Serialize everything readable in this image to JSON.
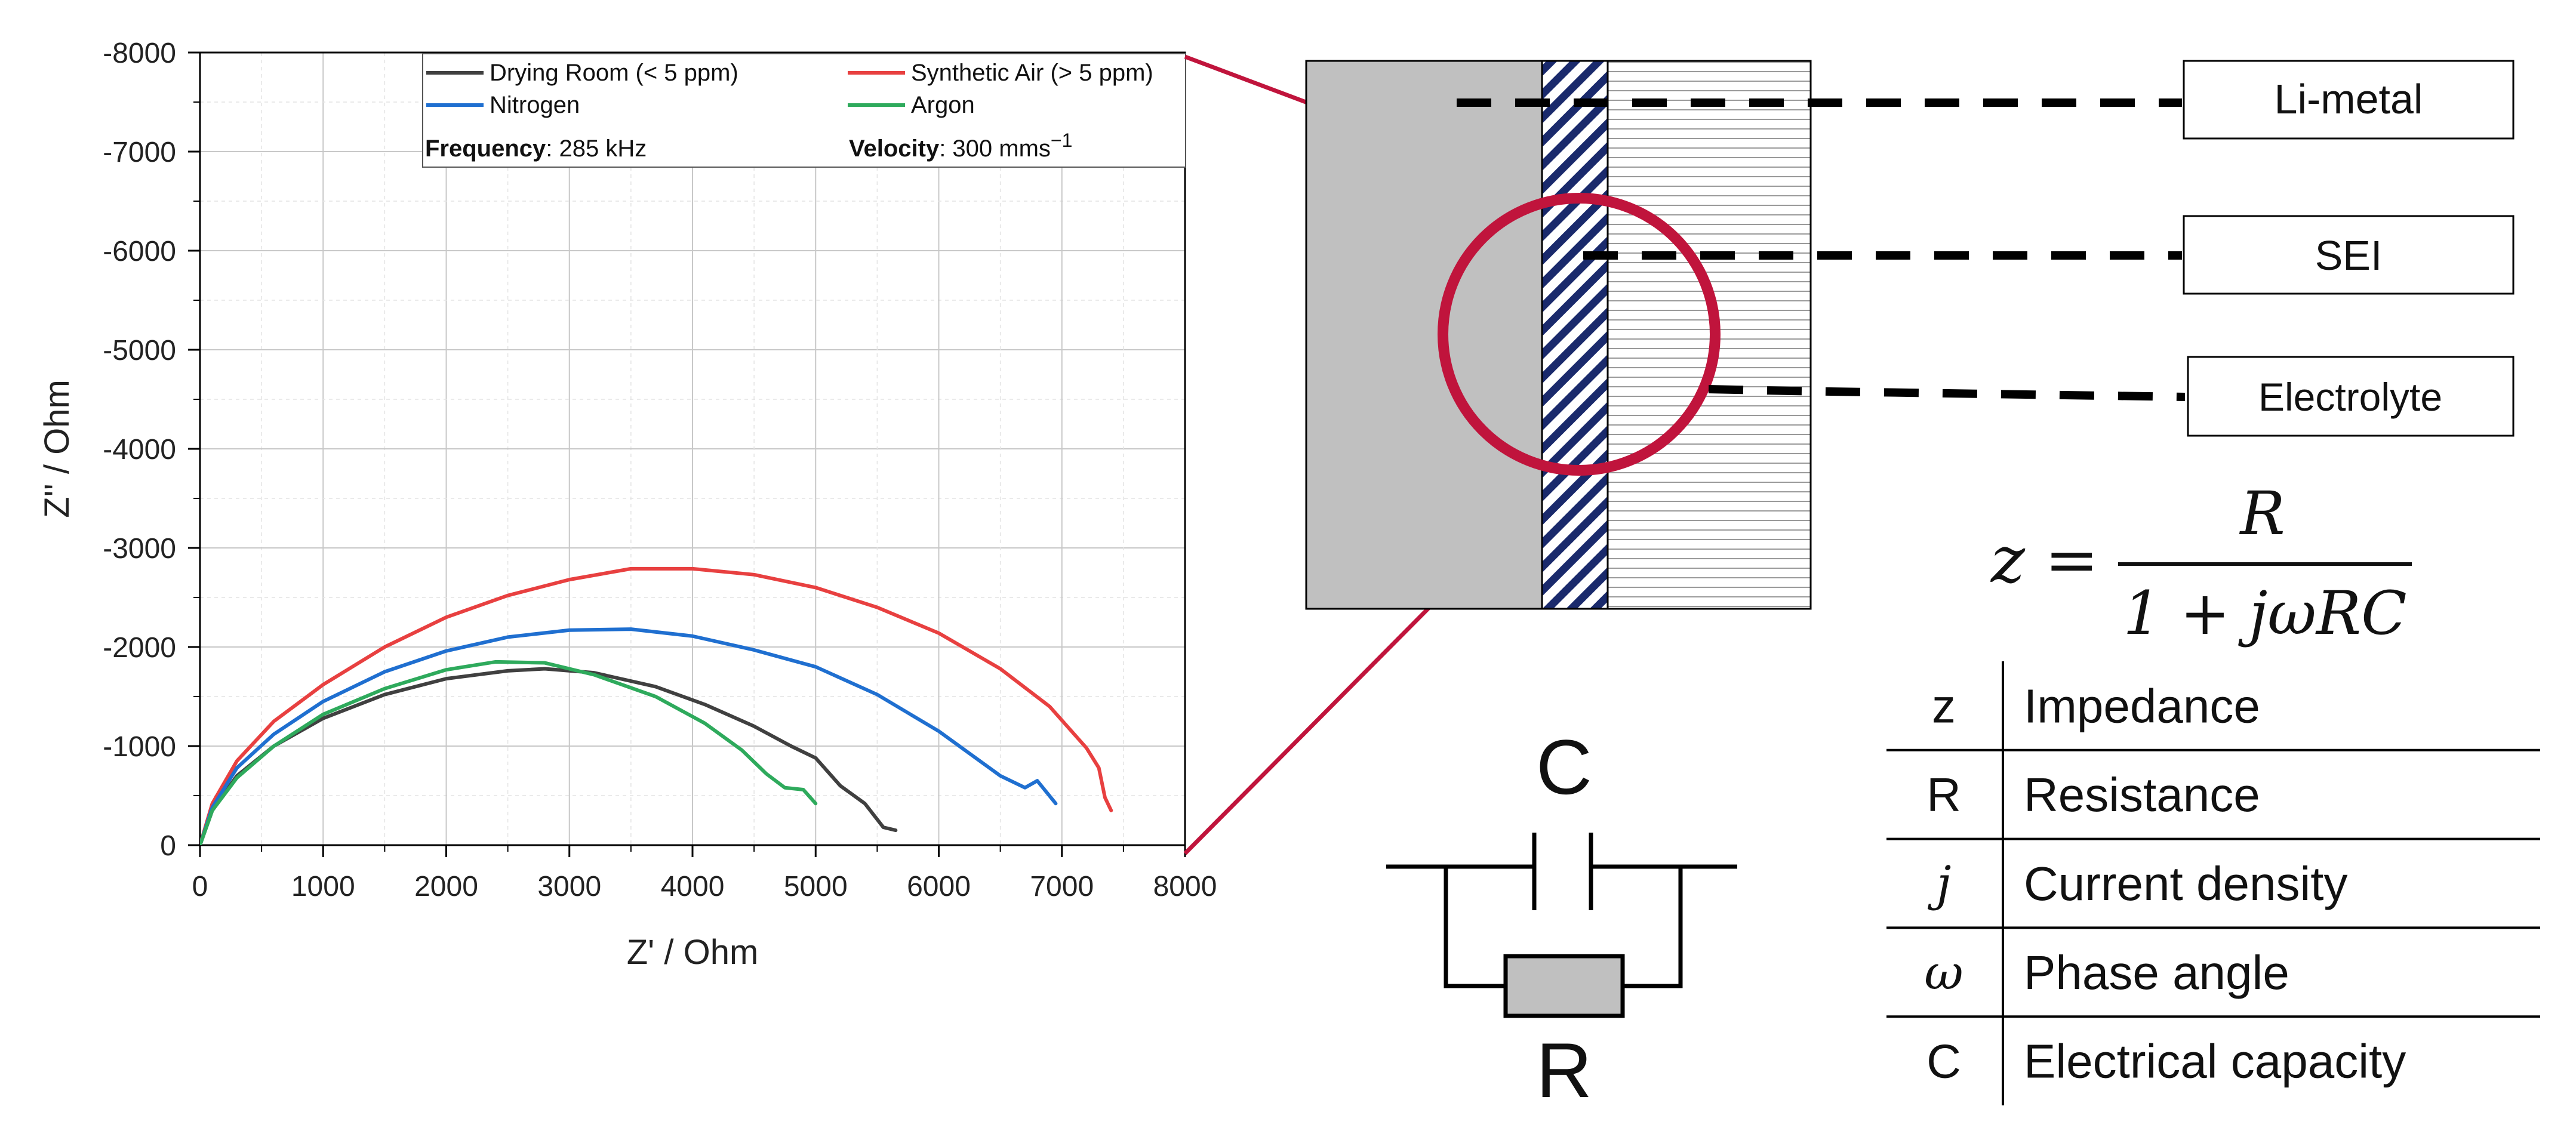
{
  "chart_data": {
    "type": "line",
    "title": "",
    "xlabel": "Z' / Ohm",
    "ylabel": "Z'' / Ohm",
    "xlim": [
      0,
      8000
    ],
    "ylim": [
      0,
      -8000
    ],
    "x_ticks": [
      "0",
      "1000",
      "2000",
      "3000",
      "4000",
      "5000",
      "6000",
      "7000",
      "8000"
    ],
    "y_ticks": [
      "0",
      "-1000",
      "-2000",
      "-3000",
      "-4000",
      "-5000",
      "-6000",
      "-7000",
      "-8000"
    ],
    "grid": true,
    "legend_position": "top-right",
    "info": {
      "frequency_label": "Frequency",
      "frequency_value": ": 285 kHz",
      "velocity_label": "Velocity",
      "velocity_value": ": 300 mms",
      "velocity_exp": "−1"
    },
    "series": [
      {
        "name": "Drying Room (< 5 ppm)",
        "color": "#404040",
        "x": [
          0,
          100,
          300,
          600,
          1000,
          1500,
          2000,
          2500,
          2800,
          3200,
          3700,
          4100,
          4500,
          4800,
          5000,
          5200,
          5400,
          5550,
          5650
        ],
        "y": [
          0,
          -350,
          -700,
          -1000,
          -1280,
          -1520,
          -1680,
          -1760,
          -1780,
          -1740,
          -1600,
          -1420,
          -1200,
          -1000,
          -880,
          -600,
          -420,
          -180,
          -150
        ]
      },
      {
        "name": "Synthetic Air (> 5 ppm)",
        "color": "#e84040",
        "x": [
          0,
          100,
          300,
          600,
          1000,
          1500,
          2000,
          2500,
          3000,
          3500,
          4000,
          4500,
          5000,
          5500,
          6000,
          6500,
          6900,
          7200,
          7300,
          7350,
          7400
        ],
        "y": [
          0,
          -420,
          -850,
          -1250,
          -1620,
          -2000,
          -2300,
          -2520,
          -2680,
          -2790,
          -2790,
          -2730,
          -2600,
          -2400,
          -2140,
          -1780,
          -1400,
          -980,
          -780,
          -480,
          -350
        ]
      },
      {
        "name": "Nitrogen",
        "color": "#1f6fd0",
        "x": [
          0,
          100,
          300,
          600,
          1000,
          1500,
          2000,
          2500,
          3000,
          3500,
          4000,
          4500,
          5000,
          5500,
          6000,
          6300,
          6500,
          6700,
          6800,
          6950
        ],
        "y": [
          0,
          -380,
          -780,
          -1120,
          -1450,
          -1750,
          -1960,
          -2100,
          -2170,
          -2180,
          -2110,
          -1970,
          -1800,
          -1520,
          -1150,
          -880,
          -700,
          -580,
          -650,
          -420
        ]
      },
      {
        "name": "Argon",
        "color": "#2eaa5c",
        "x": [
          0,
          100,
          300,
          600,
          1000,
          1500,
          2000,
          2400,
          2800,
          3200,
          3700,
          4100,
          4400,
          4600,
          4750,
          4900,
          5000
        ],
        "y": [
          0,
          -350,
          -680,
          -1000,
          -1320,
          -1580,
          -1770,
          -1850,
          -1840,
          -1720,
          -1500,
          -1230,
          -960,
          -720,
          -580,
          -560,
          -420
        ]
      }
    ]
  },
  "diagram": {
    "callouts": {
      "li_metal": "Li-metal",
      "sei": "SEI",
      "electrolyte": "Electrolyte"
    },
    "formula": {
      "lhs": "z",
      "eq": "=",
      "numerator": "R",
      "denominator": "1 + jωRC"
    },
    "circuit": {
      "capacitor_label": "C",
      "resistor_label": "R"
    },
    "legend_table": [
      {
        "symbol": "z",
        "italic": false,
        "description": "Impedance"
      },
      {
        "symbol": "R",
        "italic": false,
        "description": "Resistance"
      },
      {
        "symbol": "j",
        "italic": true,
        "description": "Current density"
      },
      {
        "symbol": "ω",
        "italic": true,
        "description": "Phase angle"
      },
      {
        "symbol": "C",
        "italic": false,
        "description": "Electrical capacity"
      }
    ],
    "colors": {
      "magnifier": "#c0143c",
      "li_metal_fill": "#c0c0c0",
      "sei_hatch": "#1a2a6c",
      "electrolyte_lines": "#9a9a9a"
    }
  }
}
